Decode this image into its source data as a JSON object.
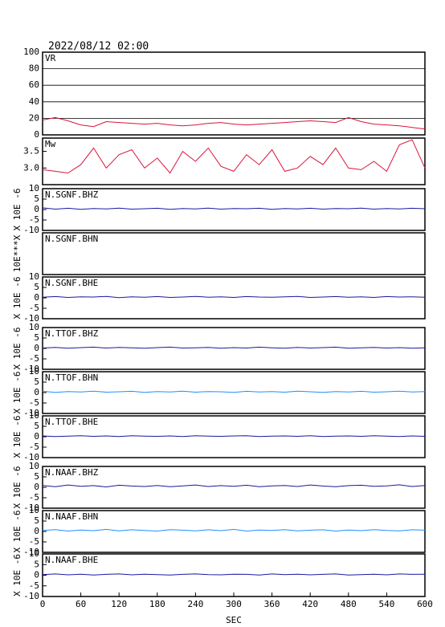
{
  "chart_data": [
    {
      "type": "line",
      "title": "2022/08/12 02:00",
      "panel_label": "VR",
      "color": "#dc143c",
      "grid": true,
      "xlim": [
        0,
        600
      ],
      "ylim": [
        0,
        100
      ],
      "yticks": [
        0,
        20,
        40,
        60,
        80,
        100
      ],
      "x": [
        0,
        20,
        40,
        60,
        80,
        100,
        120,
        140,
        160,
        180,
        200,
        220,
        240,
        260,
        280,
        300,
        320,
        340,
        360,
        380,
        400,
        420,
        440,
        460,
        480,
        500,
        520,
        540,
        560,
        580,
        600
      ],
      "values": [
        18,
        21,
        17,
        12,
        10,
        16,
        15,
        14,
        13,
        14,
        12,
        11,
        12,
        14,
        15,
        13,
        12,
        13,
        14,
        15,
        16,
        17,
        16,
        15,
        21,
        16,
        13,
        12,
        11,
        9,
        7
      ]
    },
    {
      "type": "line",
      "panel_label": "Mw",
      "color": "#dc143c",
      "xlim": [
        0,
        600
      ],
      "ylim": [
        2.5,
        3.9
      ],
      "yticks": [
        {
          "value": 3,
          "label": "3.0"
        },
        3.5
      ],
      "x": [
        0,
        20,
        40,
        60,
        80,
        100,
        120,
        140,
        160,
        180,
        200,
        220,
        240,
        260,
        280,
        300,
        320,
        340,
        360,
        380,
        400,
        420,
        440,
        460,
        480,
        500,
        520,
        540,
        560,
        580,
        600
      ],
      "values": [
        2.95,
        2.9,
        2.85,
        3.1,
        3.6,
        3.0,
        3.4,
        3.55,
        3.0,
        3.3,
        2.85,
        3.5,
        3.2,
        3.6,
        3.05,
        2.9,
        3.4,
        3.1,
        3.55,
        2.9,
        3.0,
        3.35,
        3.1,
        3.6,
        3.0,
        2.95,
        3.2,
        2.9,
        3.7,
        3.85,
        3.0
      ]
    },
    {
      "type": "line",
      "panel_label": "N.SGNF.BHZ",
      "ylabel": "X 10E -6",
      "color": "#1a1aa0",
      "xlim": [
        0,
        600
      ],
      "ylim": [
        -10,
        10
      ],
      "yticks": [
        -10,
        -5,
        0,
        5,
        10
      ],
      "x": [
        0,
        20,
        40,
        60,
        80,
        100,
        120,
        140,
        160,
        180,
        200,
        220,
        240,
        260,
        280,
        300,
        320,
        340,
        360,
        380,
        400,
        420,
        440,
        460,
        480,
        500,
        520,
        540,
        560,
        580,
        600
      ],
      "values": [
        0.8,
        0.2,
        0.6,
        0.1,
        0.5,
        0.3,
        0.7,
        0.2,
        0.4,
        0.6,
        0.1,
        0.5,
        0.3,
        0.7,
        0.2,
        0.5,
        0.4,
        0.6,
        0.1,
        0.5,
        0.3,
        0.6,
        0.2,
        0.5,
        0.4,
        0.7,
        0.2,
        0.5,
        0.3,
        0.6,
        0.4
      ]
    },
    {
      "type": "line",
      "panel_label": "N.SGNF.BHN",
      "ylabel": "10E***X",
      "xlim": [
        0,
        600
      ]
    },
    {
      "type": "line",
      "panel_label": "N.SGNF.BHE",
      "ylabel": "X 10E -6",
      "color": "#1a1aa0",
      "xlim": [
        0,
        600
      ],
      "ylim": [
        -10,
        10
      ],
      "yticks": [
        -10,
        -5,
        0,
        5,
        10
      ],
      "x": [
        0,
        20,
        40,
        60,
        80,
        100,
        120,
        140,
        160,
        180,
        200,
        220,
        240,
        260,
        280,
        300,
        320,
        340,
        360,
        380,
        400,
        420,
        440,
        460,
        480,
        500,
        520,
        540,
        560,
        580,
        600
      ],
      "values": [
        0.3,
        0.6,
        0.2,
        0.5,
        0.4,
        0.7,
        0.1,
        0.5,
        0.3,
        0.6,
        0.2,
        0.4,
        0.7,
        0.3,
        0.5,
        0.2,
        0.6,
        0.4,
        0.3,
        0.5,
        0.7,
        0.2,
        0.4,
        0.6,
        0.3,
        0.5,
        0.2,
        0.6,
        0.4,
        0.5,
        0.3
      ]
    },
    {
      "type": "line",
      "panel_label": "N.TTOF.BHZ",
      "ylabel": "X 10E -6",
      "color": "#1a1aa0",
      "xlim": [
        0,
        600
      ],
      "ylim": [
        -10,
        10
      ],
      "yticks": [
        -10,
        -5,
        0,
        5,
        10
      ],
      "x": [
        0,
        20,
        40,
        60,
        80,
        100,
        120,
        140,
        160,
        180,
        200,
        220,
        240,
        260,
        280,
        300,
        320,
        340,
        360,
        380,
        400,
        420,
        440,
        460,
        480,
        500,
        520,
        540,
        560,
        580,
        600
      ],
      "values": [
        0.2,
        0.5,
        0.1,
        0.4,
        0.6,
        0.2,
        0.5,
        0.3,
        0.1,
        0.4,
        0.6,
        0.2,
        0.3,
        0.5,
        0.1,
        0.4,
        0.2,
        0.6,
        0.3,
        0.1,
        0.5,
        0.2,
        0.4,
        0.6,
        0.1,
        0.3,
        0.5,
        0.2,
        0.4,
        0.1,
        0.3
      ]
    },
    {
      "type": "line",
      "panel_label": "N.TTOF.BHN",
      "ylabel": "X 10E -6",
      "color": "#1e90ff",
      "xlim": [
        0,
        600
      ],
      "ylim": [
        -10,
        10
      ],
      "yticks": [
        -10,
        -5,
        0,
        5,
        10
      ],
      "x": [
        0,
        20,
        40,
        60,
        80,
        100,
        120,
        140,
        160,
        180,
        200,
        220,
        240,
        260,
        280,
        300,
        320,
        340,
        360,
        380,
        400,
        420,
        440,
        460,
        480,
        500,
        520,
        540,
        560,
        580,
        600
      ],
      "values": [
        0.6,
        0.1,
        0.5,
        0.3,
        0.7,
        0.2,
        0.4,
        0.6,
        0.1,
        0.5,
        0.3,
        0.7,
        0.2,
        0.5,
        0.4,
        0.1,
        0.6,
        0.3,
        0.5,
        0.2,
        0.7,
        0.4,
        0.1,
        0.5,
        0.3,
        0.6,
        0.2,
        0.4,
        0.7,
        0.3,
        0.5
      ]
    },
    {
      "type": "line",
      "panel_label": "N.TTOF.BHE",
      "ylabel": "X 10E -6",
      "color": "#1a1aa0",
      "xlim": [
        0,
        600
      ],
      "ylim": [
        -10,
        10
      ],
      "yticks": [
        -10,
        -5,
        0,
        5,
        10
      ],
      "x": [
        0,
        20,
        40,
        60,
        80,
        100,
        120,
        140,
        160,
        180,
        200,
        220,
        240,
        260,
        280,
        300,
        320,
        340,
        360,
        380,
        400,
        420,
        440,
        460,
        480,
        500,
        520,
        540,
        560,
        580,
        600
      ],
      "values": [
        0.4,
        0.1,
        0.3,
        0.5,
        0.2,
        0.4,
        0.1,
        0.5,
        0.3,
        0.2,
        0.4,
        0.1,
        0.5,
        0.3,
        0.2,
        0.4,
        0.5,
        0.1,
        0.3,
        0.4,
        0.2,
        0.5,
        0.1,
        0.3,
        0.4,
        0.2,
        0.5,
        0.3,
        0.1,
        0.4,
        0.2
      ]
    },
    {
      "type": "line",
      "panel_label": "N.NAAF.BHZ",
      "ylabel": "X 10E -6",
      "color": "#1a1aa0",
      "xlim": [
        0,
        600
      ],
      "ylim": [
        -10,
        10
      ],
      "yticks": [
        -10,
        -5,
        0,
        5,
        10
      ],
      "x": [
        0,
        20,
        40,
        60,
        80,
        100,
        120,
        140,
        160,
        180,
        200,
        220,
        240,
        260,
        280,
        300,
        320,
        340,
        360,
        380,
        400,
        420,
        440,
        460,
        480,
        500,
        520,
        540,
        560,
        580,
        600
      ],
      "values": [
        0.9,
        0.3,
        1.1,
        0.5,
        0.8,
        0.2,
        1.0,
        0.6,
        0.4,
        0.9,
        0.3,
        0.7,
        1.1,
        0.4,
        0.8,
        0.5,
        1.0,
        0.3,
        0.7,
        0.9,
        0.4,
        1.1,
        0.6,
        0.3,
        0.8,
        1.0,
        0.5,
        0.7,
        1.2,
        0.4,
        0.9
      ]
    },
    {
      "type": "line",
      "panel_label": "N.NAAF.BHN",
      "ylabel": "X 10E -6",
      "color": "#1e90ff",
      "xlim": [
        0,
        600
      ],
      "ylim": [
        -10,
        10
      ],
      "yticks": [
        -10,
        -5,
        0,
        5,
        10
      ],
      "x": [
        0,
        20,
        40,
        60,
        80,
        100,
        120,
        140,
        160,
        180,
        200,
        220,
        240,
        260,
        280,
        300,
        320,
        340,
        360,
        380,
        400,
        420,
        440,
        460,
        480,
        500,
        520,
        540,
        560,
        580,
        600
      ],
      "values": [
        0.5,
        0.9,
        0.2,
        0.7,
        0.4,
        1.0,
        0.3,
        0.8,
        0.5,
        0.2,
        0.9,
        0.6,
        0.3,
        0.8,
        0.4,
        1.0,
        0.2,
        0.7,
        0.5,
        0.9,
        0.3,
        0.6,
        0.8,
        0.2,
        0.7,
        0.4,
        0.9,
        0.5,
        0.3,
        0.8,
        0.6
      ]
    },
    {
      "type": "line",
      "panel_label": "N.NAAF.BHE",
      "ylabel": "X 10E -6",
      "color": "#1a1aa0",
      "xlim": [
        0,
        600
      ],
      "ylim": [
        -10,
        10
      ],
      "yticks": [
        -10,
        -5,
        0,
        5,
        10
      ],
      "x": [
        0,
        20,
        40,
        60,
        80,
        100,
        120,
        140,
        160,
        180,
        200,
        220,
        240,
        260,
        280,
        300,
        320,
        340,
        360,
        380,
        400,
        420,
        440,
        460,
        480,
        500,
        520,
        540,
        560,
        580,
        600
      ],
      "values": [
        0.3,
        0.6,
        0.2,
        0.5,
        0.1,
        0.4,
        0.6,
        0.2,
        0.5,
        0.3,
        0.1,
        0.4,
        0.6,
        0.3,
        0.2,
        0.5,
        0.4,
        0.1,
        0.6,
        0.3,
        0.5,
        0.2,
        0.4,
        0.6,
        0.1,
        0.3,
        0.5,
        0.2,
        0.6,
        0.4,
        0.5
      ],
      "xticks": [
        0,
        60,
        120,
        180,
        240,
        300,
        360,
        420,
        480,
        540,
        600
      ],
      "xlabel": "SEC"
    }
  ]
}
